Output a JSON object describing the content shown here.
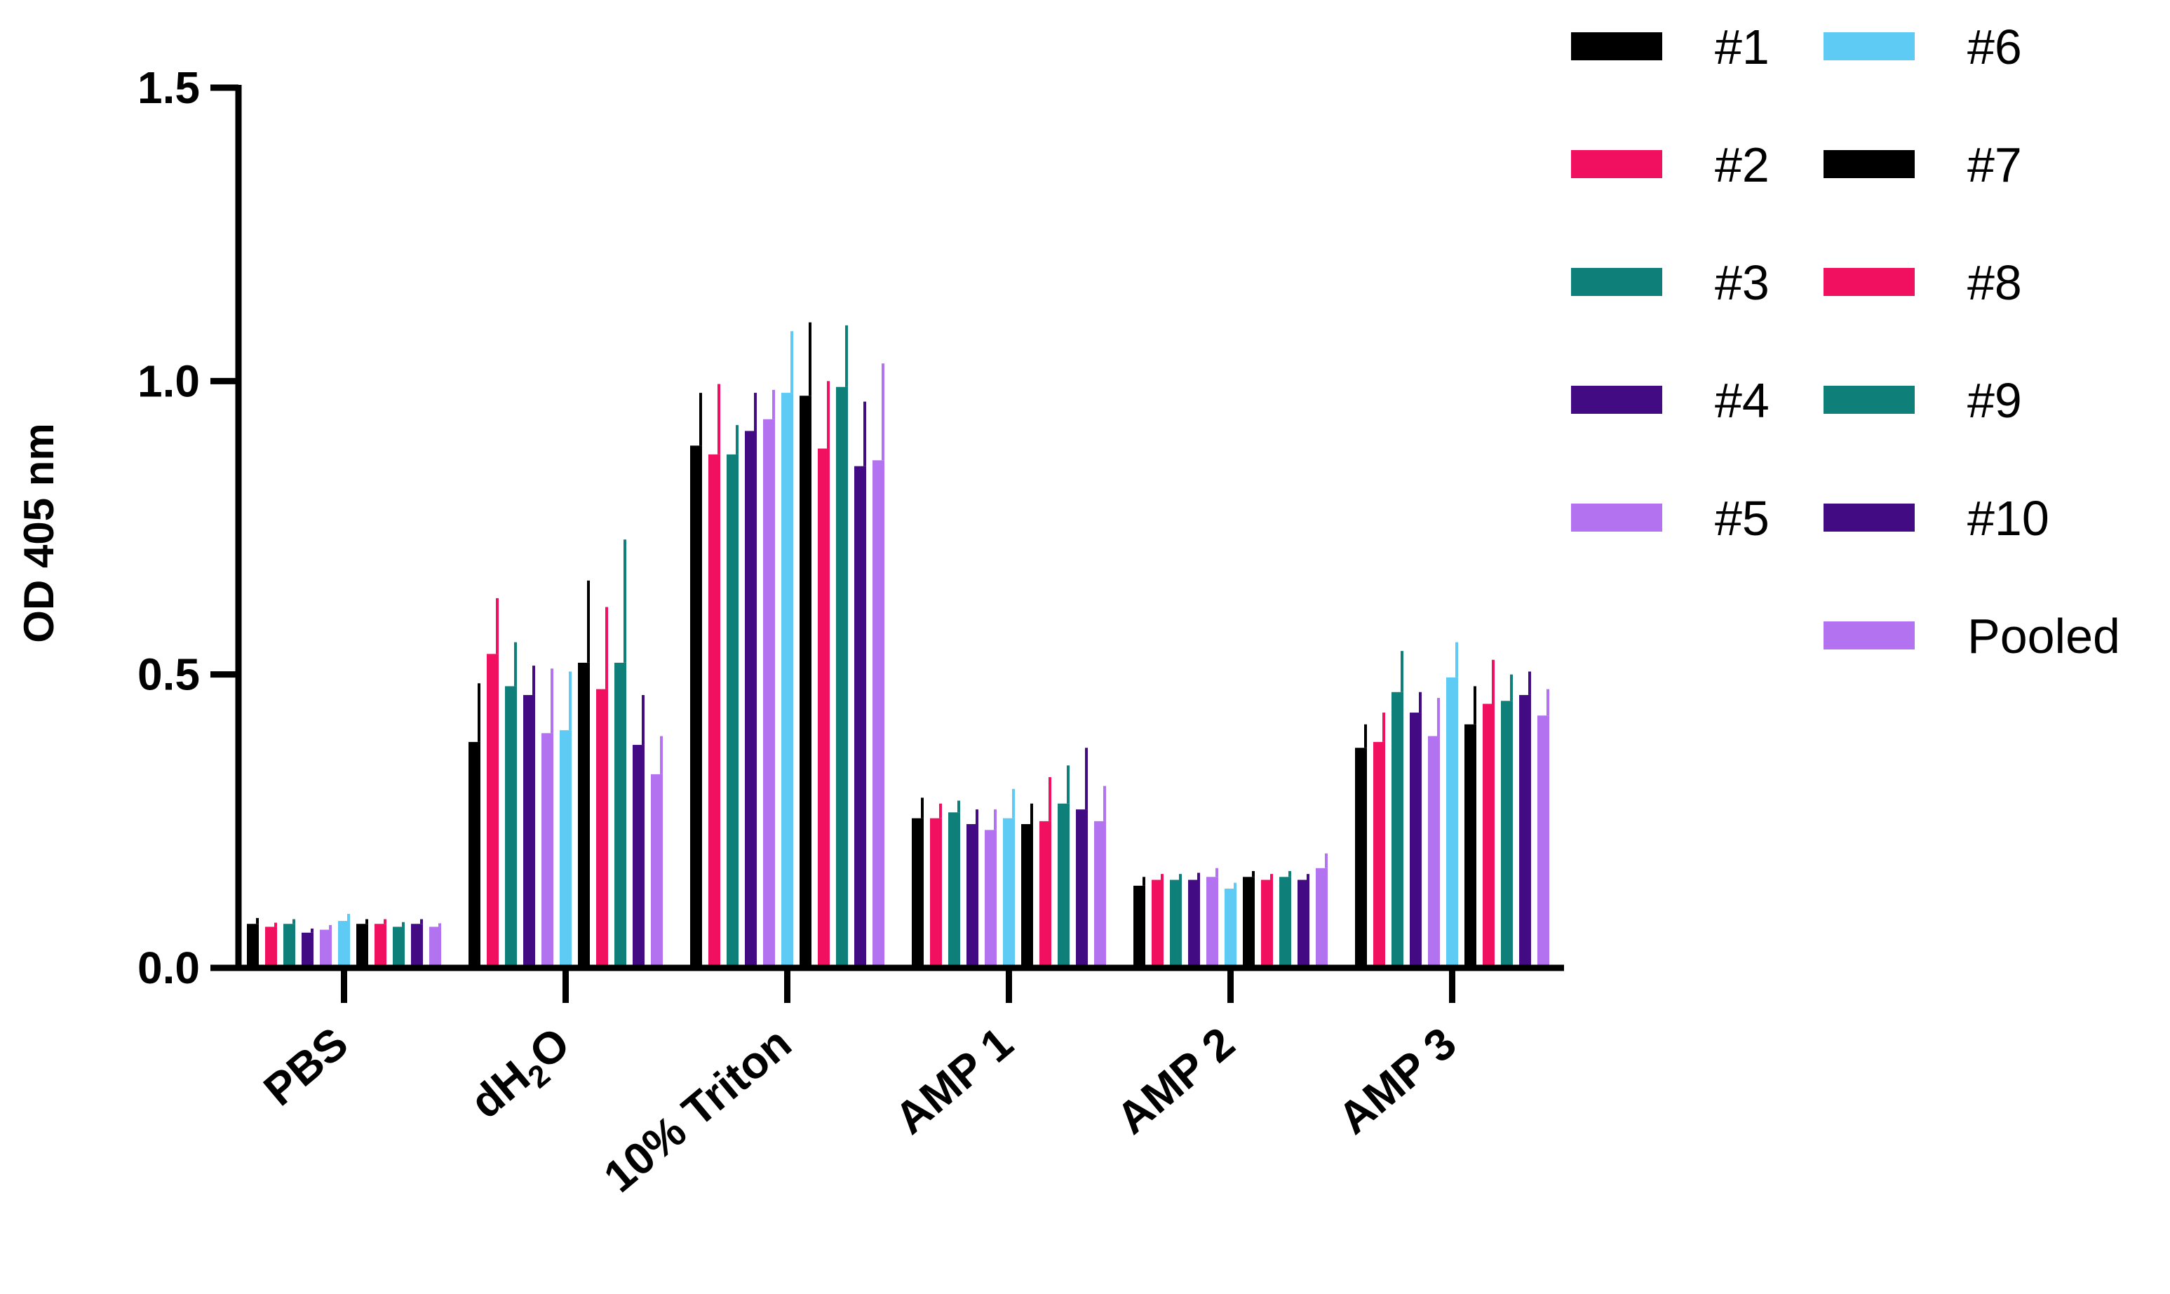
{
  "chart_data": {
    "type": "bar",
    "title": "",
    "ylabel": "OD 405 nm",
    "xlabel": "",
    "ylim": [
      0,
      1.5
    ],
    "yticks": [
      "0.0",
      "0.5",
      "1.0",
      "1.5"
    ],
    "legend_position": "top-right",
    "categories": [
      {
        "main": "PBS",
        "sub": "",
        "post": ""
      },
      {
        "main": "dH",
        "sub": "2",
        "post": "O"
      },
      {
        "main": "10% Triton",
        "sub": "",
        "post": ""
      },
      {
        "main": "AMP 1",
        "sub": "",
        "post": ""
      },
      {
        "main": "AMP 2",
        "sub": "",
        "post": ""
      },
      {
        "main": "AMP 3",
        "sub": "",
        "post": ""
      }
    ],
    "series": [
      {
        "name": "#1",
        "color": "#000000",
        "values": [
          0.075,
          0.385,
          0.89,
          0.255,
          0.14,
          0.375
        ],
        "errors": [
          0.01,
          0.1,
          0.09,
          0.035,
          0.015,
          0.04
        ]
      },
      {
        "name": "#2",
        "color": "#f0105f",
        "values": [
          0.07,
          0.535,
          0.875,
          0.255,
          0.15,
          0.385
        ],
        "errors": [
          0.007,
          0.095,
          0.12,
          0.025,
          0.01,
          0.05
        ]
      },
      {
        "name": "#3",
        "color": "#0f7f7a",
        "values": [
          0.075,
          0.48,
          0.875,
          0.265,
          0.15,
          0.47
        ],
        "errors": [
          0.008,
          0.075,
          0.05,
          0.02,
          0.01,
          0.07
        ]
      },
      {
        "name": "#4",
        "color": "#420b84",
        "values": [
          0.06,
          0.465,
          0.915,
          0.245,
          0.15,
          0.435
        ],
        "errors": [
          0.007,
          0.05,
          0.065,
          0.025,
          0.012,
          0.035
        ]
      },
      {
        "name": "#5",
        "color": "#b372f0",
        "values": [
          0.065,
          0.4,
          0.935,
          0.235,
          0.155,
          0.395
        ],
        "errors": [
          0.008,
          0.11,
          0.05,
          0.035,
          0.015,
          0.065
        ]
      },
      {
        "name": "#6",
        "color": "#5ecbf5",
        "values": [
          0.08,
          0.405,
          0.98,
          0.255,
          0.135,
          0.495
        ],
        "errors": [
          0.012,
          0.1,
          0.105,
          0.05,
          0.01,
          0.06
        ]
      },
      {
        "name": "#7",
        "color": "#000000",
        "values": [
          0.075,
          0.52,
          0.975,
          0.245,
          0.155,
          0.415
        ],
        "errors": [
          0.008,
          0.14,
          0.125,
          0.035,
          0.01,
          0.065
        ]
      },
      {
        "name": "#8",
        "color": "#f0105f",
        "values": [
          0.075,
          0.475,
          0.885,
          0.25,
          0.15,
          0.45
        ],
        "errors": [
          0.008,
          0.14,
          0.115,
          0.075,
          0.01,
          0.075
        ]
      },
      {
        "name": "#9",
        "color": "#0f7f7a",
        "values": [
          0.07,
          0.52,
          0.99,
          0.28,
          0.155,
          0.455
        ],
        "errors": [
          0.008,
          0.21,
          0.105,
          0.065,
          0.01,
          0.045
        ]
      },
      {
        "name": "#10",
        "color": "#420b84",
        "values": [
          0.075,
          0.38,
          0.855,
          0.27,
          0.15,
          0.465
        ],
        "errors": [
          0.008,
          0.085,
          0.11,
          0.105,
          0.01,
          0.04
        ]
      },
      {
        "name": "Pooled",
        "color": "#b372f0",
        "values": [
          0.07,
          0.33,
          0.865,
          0.25,
          0.17,
          0.43
        ],
        "errors": [
          0.006,
          0.065,
          0.165,
          0.06,
          0.025,
          0.045
        ]
      }
    ]
  }
}
